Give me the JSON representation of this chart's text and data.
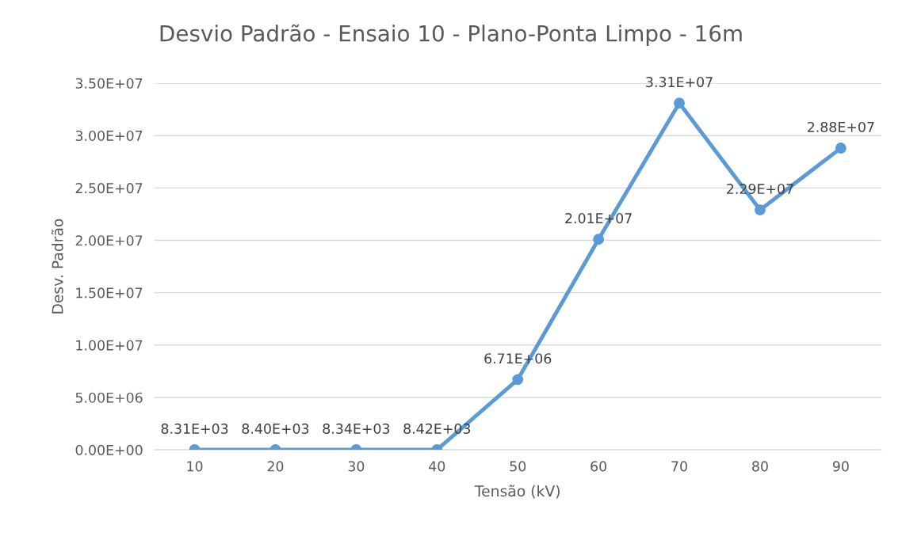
{
  "chart_data": {
    "type": "line",
    "title": "Desvio Padrão - Ensaio 10 - Plano-Ponta Limpo - 16m",
    "xlabel": "Tensão (kV)",
    "ylabel": "Desv. Padrão",
    "categories": [
      "10",
      "20",
      "30",
      "40",
      "50",
      "60",
      "70",
      "80",
      "90"
    ],
    "series": [
      {
        "color": "#5b9bd5",
        "values": [
          8310,
          8400,
          8340,
          8420,
          6710000,
          20100000,
          33100000,
          22900000,
          28800000
        ],
        "value_labels": [
          "8.31E+03",
          "8.40E+03",
          "8.34E+03",
          "8.42E+03",
          "6.71E+06",
          "2.01E+07",
          "3.31E+07",
          "2.29E+07",
          "2.88E+07"
        ]
      }
    ],
    "ylim": [
      0,
      35000000
    ],
    "yticks": [
      {
        "value": 0,
        "label": "0.00E+00"
      },
      {
        "value": 5000000,
        "label": "5.00E+06"
      },
      {
        "value": 10000000,
        "label": "1.00E+07"
      },
      {
        "value": 15000000,
        "label": "1.50E+07"
      },
      {
        "value": 20000000,
        "label": "2.00E+07"
      },
      {
        "value": 25000000,
        "label": "2.50E+07"
      },
      {
        "value": 30000000,
        "label": "3.00E+07"
      },
      {
        "value": 35000000,
        "label": "3.50E+07"
      }
    ],
    "grid": "y",
    "marker": "circle",
    "line_style": "solid"
  }
}
